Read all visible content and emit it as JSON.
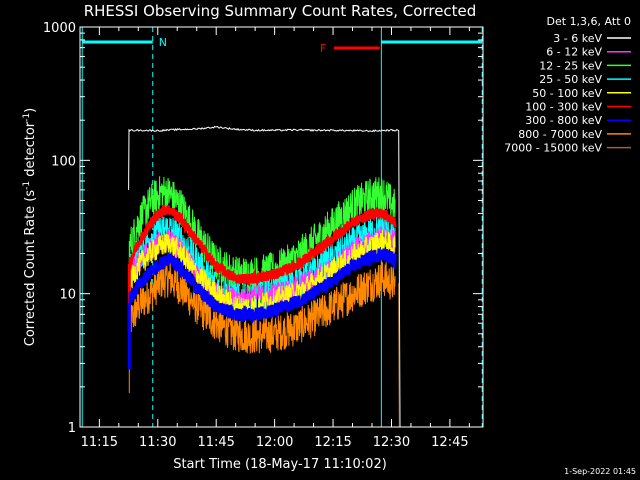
{
  "chart_data": {
    "type": "line",
    "title": "RHESSI Observing Summary Count Rates, Corrected",
    "xlabel": "Start Time (18-May-17 11:10:02)",
    "ylabel_main": "Corrected Count Rate (s",
    "ylabel_sup1": "-1",
    "ylabel_mid": " detector",
    "ylabel_sup2": "-1",
    "ylabel_end": ")",
    "y_scale": "log",
    "ylim": [
      1,
      1000
    ],
    "y_ticks": [
      {
        "value": 1,
        "label": "1"
      },
      {
        "value": 10,
        "label": "10"
      },
      {
        "value": 100,
        "label": "100"
      },
      {
        "value": 1000,
        "label": "1000"
      }
    ],
    "x_ticks_minutes": [
      15,
      30,
      45,
      60,
      75,
      90,
      105
    ],
    "x_tick_labels": [
      "11:15",
      "11:30",
      "11:45",
      "12:00",
      "12:15",
      "12:30",
      "12:45"
    ],
    "xlim_minutes": [
      10.03,
      113.5
    ],
    "legend": {
      "header": "Det 1,3,6, Att 0",
      "placement": "outside-right",
      "entries": [
        {
          "label": "3 - 6 keV",
          "color": "#ffffff"
        },
        {
          "label": "6 - 12 keV",
          "color": "#ff33ff"
        },
        {
          "label": "12 - 25 keV",
          "color": "#33ff33"
        },
        {
          "label": "25 - 50 keV",
          "color": "#00ffff"
        },
        {
          "label": "50 - 100 keV",
          "color": "#ffff00"
        },
        {
          "label": "100 - 300 keV",
          "color": "#ff0000"
        },
        {
          "label": "300 - 800 keV",
          "color": "#0000ff"
        },
        {
          "label": "800 - 7000 keV",
          "color": "#ff8800"
        },
        {
          "label": "7000 - 15000 keV",
          "color": "#996633"
        }
      ]
    },
    "series": [
      {
        "name": "3 - 6 keV",
        "color": "#ffffff",
        "x": [
          22.5,
          22.6,
          25,
          30,
          35,
          40,
          45,
          50,
          55,
          60,
          65,
          70,
          75,
          80,
          85,
          89,
          92,
          92.2
        ],
        "y": [
          60,
          168,
          168,
          167,
          170,
          172,
          178,
          171,
          168,
          168,
          169,
          168,
          168,
          167,
          166,
          168,
          168,
          1
        ]
      },
      {
        "name": "6 - 12 keV",
        "color": "#ff33ff",
        "x": [
          22.7,
          25,
          28,
          31,
          33,
          36,
          40,
          45,
          50,
          55,
          60,
          65,
          70,
          75,
          80,
          85,
          88,
          91
        ],
        "y": [
          13,
          17,
          21,
          25,
          25,
          21,
          14,
          10,
          9,
          9.5,
          10,
          11,
          13,
          16,
          21,
          25,
          27,
          24
        ]
      },
      {
        "name": "12 - 25 keV",
        "color": "#33ff33",
        "x": [
          22.7,
          25,
          28,
          31,
          33,
          36,
          40,
          45,
          50,
          55,
          60,
          65,
          70,
          75,
          80,
          85,
          88,
          91
        ],
        "y": [
          22,
          34,
          48,
          58,
          56,
          45,
          28,
          17,
          14,
          14,
          15,
          18,
          24,
          33,
          45,
          55,
          56,
          44
        ]
      },
      {
        "name": "25 - 50 keV",
        "color": "#00ffff",
        "x": [
          22.7,
          25,
          28,
          31,
          33,
          36,
          40,
          45,
          50,
          55,
          60,
          65,
          70,
          75,
          80,
          85,
          88,
          91
        ],
        "y": [
          14,
          20,
          26,
          30,
          30,
          25,
          17,
          11,
          9,
          9,
          10,
          12,
          14,
          18,
          23,
          28,
          30,
          26
        ]
      },
      {
        "name": "50 - 100 keV",
        "color": "#ffff00",
        "x": [
          22.7,
          25,
          28,
          31,
          33,
          36,
          40,
          45,
          50,
          55,
          60,
          65,
          70,
          75,
          80,
          85,
          88,
          91
        ],
        "y": [
          12,
          16,
          20,
          23,
          24,
          20,
          14,
          10,
          8,
          8,
          9,
          10,
          12,
          15,
          19,
          23,
          25,
          22
        ]
      },
      {
        "name": "100 - 300 keV",
        "color": "#ff0000",
        "x": [
          22.7,
          25,
          28,
          31,
          33,
          36,
          40,
          45,
          50,
          55,
          60,
          65,
          70,
          75,
          80,
          85,
          88,
          91
        ],
        "y": [
          17,
          24,
          33,
          42,
          43,
          36,
          25,
          16,
          13,
          13,
          14,
          16,
          20,
          26,
          34,
          40,
          40,
          34
        ]
      },
      {
        "name": "300 - 800 keV",
        "color": "#0000ff",
        "x": [
          22.7,
          25,
          28,
          31,
          33,
          36,
          40,
          45,
          50,
          55,
          60,
          65,
          70,
          75,
          80,
          85,
          88,
          91
        ],
        "y": [
          9,
          11.5,
          14.5,
          17,
          18,
          15.5,
          11,
          8,
          7,
          7,
          7.5,
          8.5,
          10,
          12.5,
          16,
          19,
          20,
          18
        ]
      },
      {
        "name": "800 - 7000 keV",
        "color": "#ff8800",
        "x": [
          22.7,
          25,
          28,
          31,
          33,
          36,
          40,
          45,
          50,
          55,
          60,
          65,
          70,
          75,
          80,
          85,
          88,
          91
        ],
        "y": [
          6,
          8,
          10,
          12.5,
          13,
          11,
          8,
          6,
          5,
          4.8,
          5,
          5.5,
          6.5,
          8,
          10,
          12,
          13,
          11.5
        ]
      },
      {
        "name": "7000 - 15000 keV",
        "color": "#996633",
        "x": [
          91.8,
          92,
          92.2
        ],
        "y": [
          12,
          1,
          1
        ]
      }
    ],
    "annotations": [
      {
        "text": "N",
        "color": "#00ffff"
      },
      {
        "text": "F",
        "color": "#ff0000"
      }
    ],
    "intervals": {
      "night": [
        [
          10.6,
          28.7
        ],
        [
          87.4,
          113.3
        ]
      ],
      "flare": [
        [
          75.2,
          87.0
        ]
      ]
    },
    "dashed_markers_minutes": [
      28.7,
      113.3
    ],
    "solid_markers_minutes": [
      10.6,
      87.4
    ],
    "timestamp": "1-Sep-2022 01:45"
  }
}
